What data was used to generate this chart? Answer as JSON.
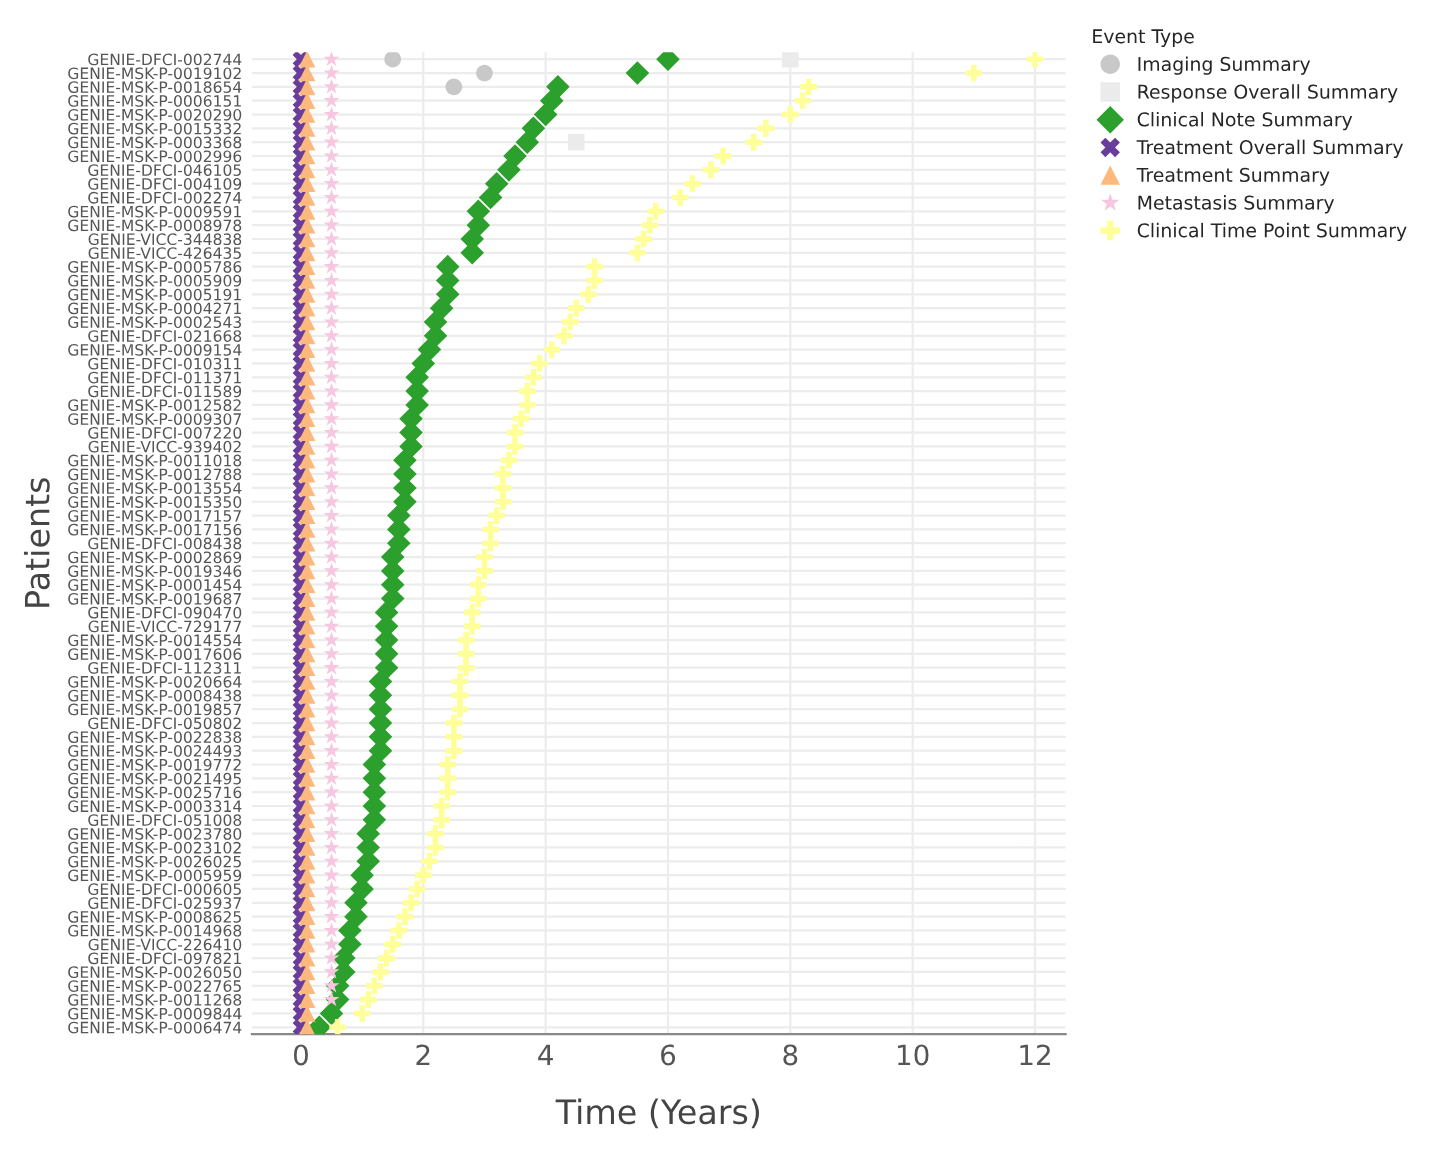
{
  "chart_data": {
    "type": "scatter",
    "orientation": "horizontal",
    "xlabel": "Time (Years)",
    "ylabel": "Patients",
    "legend_title": "Event Type",
    "legend": "top right",
    "grid": true,
    "xlim": [
      -0.8,
      12.5
    ],
    "xticks": [
      0,
      2,
      4,
      6,
      8,
      10,
      12
    ],
    "categories": [
      "GENIE-DFCI-002744",
      "GENIE-MSK-P-0019102",
      "GENIE-MSK-P-0018654",
      "GENIE-MSK-P-0006151",
      "GENIE-MSK-P-0020290",
      "GENIE-MSK-P-0015332",
      "GENIE-MSK-P-0003368",
      "GENIE-MSK-P-0002996",
      "GENIE-DFCI-046105",
      "GENIE-DFCI-004109",
      "GENIE-DFCI-002274",
      "GENIE-MSK-P-0009591",
      "GENIE-MSK-P-0008978",
      "GENIE-VICC-344838",
      "GENIE-VICC-426435",
      "GENIE-MSK-P-0005786",
      "GENIE-MSK-P-0005909",
      "GENIE-MSK-P-0005191",
      "GENIE-MSK-P-0004271",
      "GENIE-MSK-P-0002543",
      "GENIE-DFCI-021668",
      "GENIE-MSK-P-0009154",
      "GENIE-DFCI-010311",
      "GENIE-DFCI-011371",
      "GENIE-DFCI-011589",
      "GENIE-MSK-P-0012582",
      "GENIE-MSK-P-0009307",
      "GENIE-DFCI-007220",
      "GENIE-VICC-939402",
      "GENIE-MSK-P-0011018",
      "GENIE-MSK-P-0012788",
      "GENIE-MSK-P-0013554",
      "GENIE-MSK-P-0015350",
      "GENIE-MSK-P-0017157",
      "GENIE-MSK-P-0017156",
      "GENIE-DFCI-008438",
      "GENIE-MSK-P-0002869",
      "GENIE-MSK-P-0019346",
      "GENIE-MSK-P-0001454",
      "GENIE-MSK-P-0019687",
      "GENIE-DFCI-090470",
      "GENIE-VICC-729177",
      "GENIE-MSK-P-0014554",
      "GENIE-MSK-P-0017606",
      "GENIE-DFCI-112311",
      "GENIE-MSK-P-0020664",
      "GENIE-MSK-P-0008438",
      "GENIE-MSK-P-0019857",
      "GENIE-DFCI-050802",
      "GENIE-MSK-P-0022838",
      "GENIE-MSK-P-0024493",
      "GENIE-MSK-P-0019772",
      "GENIE-MSK-P-0021495",
      "GENIE-MSK-P-0025716",
      "GENIE-MSK-P-0003314",
      "GENIE-DFCI-051008",
      "GENIE-MSK-P-0023780",
      "GENIE-MSK-P-0023102",
      "GENIE-MSK-P-0026025",
      "GENIE-MSK-P-0005959",
      "GENIE-DFCI-000605",
      "GENIE-DFCI-025937",
      "GENIE-MSK-P-0008625",
      "GENIE-MSK-P-0014968",
      "GENIE-VICC-226410",
      "GENIE-DFCI-097821",
      "GENIE-MSK-P-0026050",
      "GENIE-MSK-P-0022765",
      "GENIE-MSK-P-0011268",
      "GENIE-MSK-P-0009844",
      "GENIE-MSK-P-0006474"
    ],
    "series": [
      {
        "name": "Imaging Summary",
        "color": "#c8c8c8",
        "marker": "circle",
        "values": [
          1.5,
          3.0,
          2.5,
          null,
          null,
          null,
          null,
          null,
          null,
          null,
          null,
          null,
          null,
          null,
          null,
          null,
          null,
          null,
          null,
          null,
          null,
          null,
          null,
          null,
          null,
          null,
          null,
          null,
          null,
          null,
          null,
          null,
          null,
          null,
          null,
          null,
          null,
          null,
          null,
          null,
          null,
          null,
          null,
          null,
          null,
          null,
          null,
          null,
          null,
          null,
          null,
          null,
          null,
          null,
          null,
          null,
          null,
          null,
          null,
          null,
          null,
          null,
          null,
          null,
          null,
          null,
          null,
          null,
          null,
          null,
          null
        ]
      },
      {
        "name": "Response Overall Summary",
        "color": "#ebebeb",
        "marker": "square",
        "values": [
          8.0,
          null,
          null,
          null,
          null,
          null,
          4.5,
          null,
          null,
          null,
          null,
          null,
          null,
          null,
          null,
          null,
          null,
          null,
          null,
          null,
          null,
          null,
          null,
          null,
          null,
          null,
          null,
          null,
          null,
          null,
          null,
          null,
          null,
          null,
          null,
          null,
          null,
          null,
          null,
          null,
          null,
          null,
          null,
          null,
          null,
          null,
          null,
          null,
          null,
          null,
          null,
          null,
          null,
          null,
          null,
          null,
          null,
          null,
          null,
          null,
          null,
          null,
          null,
          null,
          null,
          null,
          null,
          null,
          null,
          null,
          null
        ]
      },
      {
        "name": "Clinical Note Summary",
        "color": "#2ca02c",
        "marker": "diamond",
        "values": [
          6.0,
          5.5,
          4.2,
          4.1,
          4.0,
          3.8,
          3.7,
          3.5,
          3.4,
          3.2,
          3.1,
          2.9,
          2.9,
          2.8,
          2.8,
          2.4,
          2.4,
          2.4,
          2.3,
          2.2,
          2.2,
          2.1,
          2.0,
          1.9,
          1.9,
          1.9,
          1.8,
          1.8,
          1.8,
          1.7,
          1.7,
          1.7,
          1.7,
          1.6,
          1.6,
          1.6,
          1.5,
          1.5,
          1.5,
          1.5,
          1.4,
          1.4,
          1.4,
          1.4,
          1.4,
          1.3,
          1.3,
          1.3,
          1.3,
          1.3,
          1.3,
          1.2,
          1.2,
          1.2,
          1.2,
          1.2,
          1.1,
          1.1,
          1.1,
          1.0,
          1.0,
          0.9,
          0.9,
          0.8,
          0.8,
          0.7,
          0.7,
          0.6,
          0.6,
          0.5,
          0.3
        ]
      },
      {
        "name": "Treatment Overall Summary",
        "color": "#6a3d9a",
        "marker": "cross",
        "values": [
          0,
          0,
          0,
          0,
          0,
          0,
          0,
          0,
          0,
          0,
          0,
          0,
          0,
          0,
          0,
          0,
          0,
          0,
          0,
          0,
          0,
          0,
          0,
          0,
          0,
          0,
          0,
          0,
          0,
          0,
          0,
          0,
          0,
          0,
          0,
          0,
          0,
          0,
          0,
          0,
          0,
          0,
          0,
          0,
          0,
          0,
          0,
          0,
          0,
          0,
          0,
          0,
          0,
          0,
          0,
          0,
          0,
          0,
          0,
          0,
          0,
          0,
          0,
          0,
          0,
          0,
          0,
          0,
          0,
          0,
          0
        ]
      },
      {
        "name": "Treatment Summary",
        "color": "#fdb97d",
        "marker": "triangle",
        "values": [
          0.1,
          0.1,
          0.1,
          0.1,
          0.1,
          0.1,
          0.1,
          0.1,
          0.1,
          0.1,
          0.1,
          0.1,
          0.1,
          0.1,
          0.1,
          0.1,
          0.1,
          0.1,
          0.1,
          0.1,
          0.1,
          0.1,
          0.1,
          0.1,
          0.1,
          0.1,
          0.1,
          0.1,
          0.1,
          0.1,
          0.1,
          0.1,
          0.1,
          0.1,
          0.1,
          0.1,
          0.1,
          0.1,
          0.1,
          0.1,
          0.1,
          0.1,
          0.1,
          0.1,
          0.1,
          0.1,
          0.1,
          0.1,
          0.1,
          0.1,
          0.1,
          0.1,
          0.1,
          0.1,
          0.1,
          0.1,
          0.1,
          0.1,
          0.1,
          0.1,
          0.1,
          0.1,
          0.1,
          0.1,
          0.1,
          0.1,
          0.1,
          0.1,
          0.1,
          0.1,
          0.1
        ]
      },
      {
        "name": "Metastasis Summary",
        "color": "#f7c6e0",
        "marker": "star",
        "values": [
          0.5,
          0.5,
          0.5,
          0.5,
          0.5,
          0.5,
          0.5,
          0.5,
          0.5,
          0.5,
          0.5,
          0.5,
          0.5,
          0.5,
          0.5,
          0.5,
          0.5,
          0.5,
          0.5,
          0.5,
          0.5,
          0.5,
          0.5,
          0.5,
          0.5,
          0.5,
          0.5,
          0.5,
          0.5,
          0.5,
          0.5,
          0.5,
          0.5,
          0.5,
          0.5,
          0.5,
          0.5,
          0.5,
          0.5,
          0.5,
          0.5,
          0.5,
          0.5,
          0.5,
          0.5,
          0.5,
          0.5,
          0.5,
          0.5,
          0.5,
          0.5,
          0.5,
          0.5,
          0.5,
          0.5,
          0.5,
          0.5,
          0.5,
          0.5,
          0.5,
          0.5,
          0.5,
          0.5,
          0.5,
          0.5,
          0.5,
          0.5,
          0.5,
          0.5,
          null,
          null
        ]
      },
      {
        "name": "Clinical Time Point Summary",
        "color": "#ffff99",
        "marker": "plus",
        "values": [
          12.0,
          11.0,
          8.3,
          8.2,
          8.0,
          7.6,
          7.4,
          6.9,
          6.7,
          6.4,
          6.2,
          5.8,
          5.7,
          5.6,
          5.5,
          4.8,
          4.8,
          4.7,
          4.5,
          4.4,
          4.3,
          4.1,
          3.9,
          3.8,
          3.7,
          3.7,
          3.6,
          3.5,
          3.5,
          3.4,
          3.3,
          3.3,
          3.3,
          3.2,
          3.1,
          3.1,
          3.0,
          3.0,
          2.9,
          2.9,
          2.8,
          2.8,
          2.7,
          2.7,
          2.7,
          2.6,
          2.6,
          2.6,
          2.5,
          2.5,
          2.5,
          2.4,
          2.4,
          2.4,
          2.3,
          2.3,
          2.2,
          2.2,
          2.1,
          2.0,
          1.9,
          1.8,
          1.7,
          1.6,
          1.5,
          1.4,
          1.3,
          1.2,
          1.1,
          1.0,
          0.6
        ]
      }
    ]
  }
}
